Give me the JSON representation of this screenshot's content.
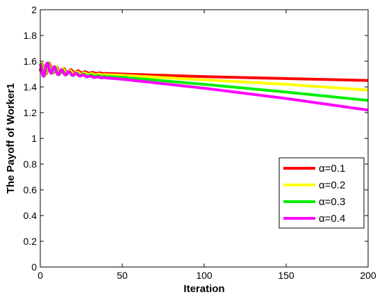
{
  "chart_data": {
    "type": "line",
    "title": "",
    "xlabel": "Iteration",
    "ylabel": "The Payoff of Worker1",
    "xlim": [
      0,
      200
    ],
    "ylim": [
      0,
      2
    ],
    "xticks": [
      0,
      50,
      100,
      150,
      200
    ],
    "yticks": [
      0,
      0.2,
      0.4,
      0.6,
      0.8,
      1,
      1.2,
      1.4,
      1.6,
      1.8,
      2
    ],
    "xtick_labels": [
      "0",
      "50",
      "100",
      "150",
      "200"
    ],
    "ytick_labels": [
      "0",
      "0.2",
      "0.4",
      "0.6",
      "0.8",
      "1",
      "1.2",
      "1.4",
      "1.6",
      "1.8",
      "2"
    ],
    "grid": false,
    "legend_position": "lower-right",
    "series": [
      {
        "name": "α=0.1",
        "color": "#ff0000",
        "x": [
          0,
          5,
          10,
          20,
          30,
          40,
          50,
          100,
          150,
          200
        ],
        "y": [
          1.52,
          1.55,
          1.53,
          1.52,
          1.51,
          1.505,
          1.5,
          1.48,
          1.465,
          1.45
        ]
      },
      {
        "name": "α=0.2",
        "color": "#ffff00",
        "x": [
          0,
          5,
          10,
          20,
          30,
          40,
          50,
          100,
          150,
          200
        ],
        "y": [
          1.52,
          1.55,
          1.53,
          1.51,
          1.5,
          1.495,
          1.49,
          1.455,
          1.42,
          1.375
        ]
      },
      {
        "name": "α=0.3",
        "color": "#00ee00",
        "x": [
          0,
          5,
          10,
          20,
          30,
          40,
          50,
          100,
          150,
          200
        ],
        "y": [
          1.52,
          1.55,
          1.52,
          1.5,
          1.49,
          1.48,
          1.475,
          1.42,
          1.36,
          1.295
        ]
      },
      {
        "name": "α=0.4",
        "color": "#ff00ff",
        "x": [
          0,
          5,
          10,
          20,
          30,
          40,
          50,
          100,
          150,
          200
        ],
        "y": [
          1.52,
          1.55,
          1.52,
          1.5,
          1.48,
          1.47,
          1.46,
          1.39,
          1.31,
          1.22
        ]
      }
    ]
  }
}
